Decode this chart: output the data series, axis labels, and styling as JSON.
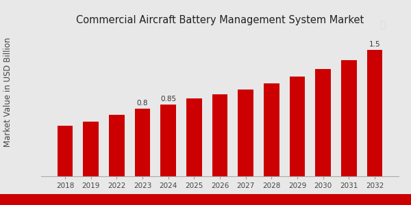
{
  "title": "Commercial Aircraft Battery Management System Market",
  "ylabel": "Market Value in USD Billion",
  "years": [
    2018,
    2019,
    2022,
    2023,
    2024,
    2025,
    2026,
    2027,
    2028,
    2029,
    2030,
    2031,
    2032
  ],
  "values": [
    0.6,
    0.65,
    0.73,
    0.8,
    0.85,
    0.92,
    0.97,
    1.03,
    1.1,
    1.18,
    1.27,
    1.38,
    1.5
  ],
  "bar_color": "#CC0000",
  "bg_color": "#e8e8e8",
  "annotations": {
    "2023": "0.8",
    "2024": "0.85",
    "2032": "1.5"
  },
  "title_fontsize": 10.5,
  "ylabel_fontsize": 8.5,
  "tick_fontsize": 7.5,
  "annotation_fontsize": 7.5,
  "ylim": [
    0,
    1.75
  ],
  "bottom_bar_color": "#CC0000",
  "bottom_bar_height": 0.055
}
